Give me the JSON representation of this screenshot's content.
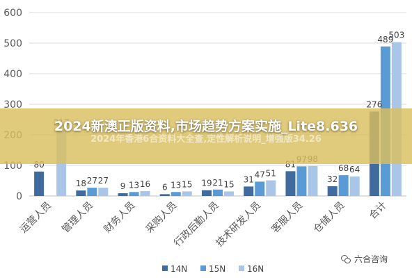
{
  "chart_data": {
    "type": "bar",
    "categories": [
      "运营人员",
      "管理人员",
      "财务人员",
      "采购人员",
      "行政后勤人员",
      "技术研发人员",
      "客服人员",
      "仓储人员",
      "合计"
    ],
    "series": [
      {
        "name": "14N",
        "color": "#3f6b9e",
        "values": [
          80,
          18,
          9,
          6,
          19,
          31,
          81,
          32,
          276
        ]
      },
      {
        "name": "15N",
        "color": "#5b9bd5",
        "values": [
          null,
          27,
          13,
          13,
          21,
          47,
          97,
          68,
          489
        ]
      },
      {
        "name": "16N",
        "color": "#a9c6e8",
        "values": [
          217,
          27,
          16,
          15,
          15,
          51,
          98,
          64,
          503
        ]
      }
    ],
    "visible_labels": [
      [
        "80",
        null,
        "217"
      ],
      [
        "18",
        "27",
        "27"
      ],
      [
        "9",
        "13",
        "16"
      ],
      [
        "6",
        "13",
        "15"
      ],
      [
        "19",
        "21",
        "15"
      ],
      [
        "31",
        "47",
        "51"
      ],
      [
        "81",
        "97",
        "98"
      ],
      [
        "32",
        "68",
        "64"
      ],
      [
        "276",
        "489",
        "503"
      ]
    ],
    "yticks": [
      "0",
      "100",
      "200",
      "300",
      "400",
      "500",
      "600"
    ],
    "ylim": [
      0,
      600
    ],
    "grid": true,
    "legend_position": "bottom",
    "title": "",
    "xlabel": "",
    "ylabel": ""
  },
  "overlay": {
    "title": "2024新澳正版资料,市场趋势方案实施_Lite8.636",
    "subtitle": "2024年香港6合资料大全查,定性解析说明_增强版34.26"
  },
  "watermark": {
    "text": "六合咨询"
  }
}
